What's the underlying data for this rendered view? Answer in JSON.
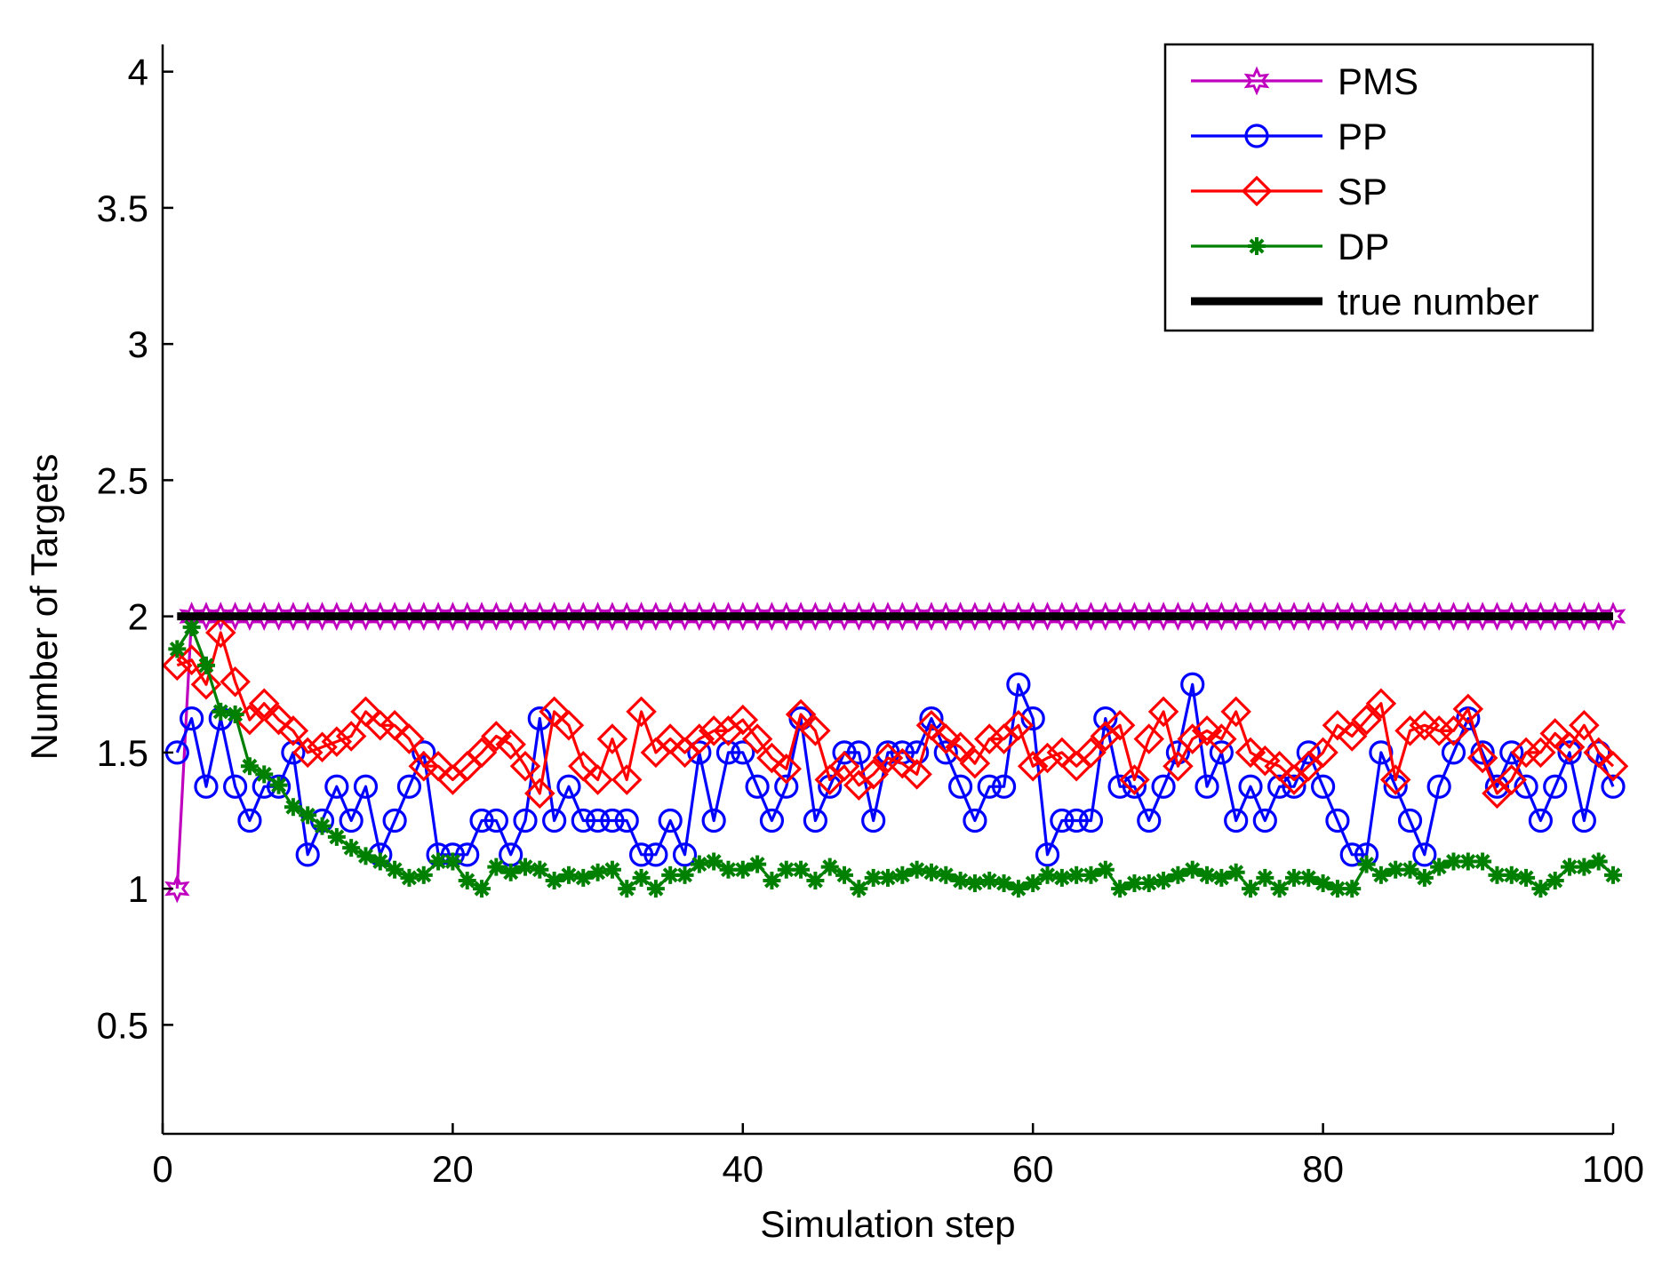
{
  "chart_data": {
    "type": "line",
    "title": "",
    "xlabel": "Simulation step",
    "ylabel": "Number of Targets",
    "xlim": [
      0,
      100
    ],
    "ylim": [
      0.1,
      4.1
    ],
    "xticks": [
      0,
      20,
      40,
      60,
      80,
      100
    ],
    "yticks": [
      0.5,
      1,
      1.5,
      2,
      2.5,
      3,
      3.5,
      4
    ],
    "xtick_labels": [
      "0",
      "20",
      "40",
      "60",
      "80",
      "100"
    ],
    "ytick_labels": [
      "0.5",
      "1",
      "1.5",
      "2",
      "2.5",
      "3",
      "3.5",
      "4"
    ],
    "grid": false,
    "legend_position": "top-right",
    "series": [
      {
        "name": "PMS",
        "color": "#bf00bf",
        "marker": "hexagram",
        "values": [
          1,
          2,
          2,
          2,
          2,
          2,
          2,
          2,
          2,
          2,
          2,
          2,
          2,
          2,
          2,
          2,
          2,
          2,
          2,
          2,
          2,
          2,
          2,
          2,
          2,
          2,
          2,
          2,
          2,
          2,
          2,
          2,
          2,
          2,
          2,
          2,
          2,
          2,
          2,
          2,
          2,
          2,
          2,
          2,
          2,
          2,
          2,
          2,
          2,
          2,
          2,
          2,
          2,
          2,
          2,
          2,
          2,
          2,
          2,
          2,
          2,
          2,
          2,
          2,
          2,
          2,
          2,
          2,
          2,
          2,
          2,
          2,
          2,
          2,
          2,
          2,
          2,
          2,
          2,
          2,
          2,
          2,
          2,
          2,
          2,
          2,
          2,
          2,
          2,
          2,
          2,
          2,
          2,
          2,
          2,
          2,
          2,
          2,
          2,
          2
        ]
      },
      {
        "name": "PP",
        "color": "#0000ff",
        "marker": "circle",
        "values": [
          1.5,
          1.625,
          1.375,
          1.625,
          1.375,
          1.25,
          1.375,
          1.375,
          1.5,
          1.125,
          1.25,
          1.375,
          1.25,
          1.375,
          1.125,
          1.25,
          1.375,
          1.5,
          1.125,
          1.125,
          1.125,
          1.25,
          1.25,
          1.125,
          1.25,
          1.625,
          1.25,
          1.375,
          1.25,
          1.25,
          1.25,
          1.25,
          1.125,
          1.125,
          1.25,
          1.125,
          1.5,
          1.25,
          1.5,
          1.5,
          1.375,
          1.25,
          1.375,
          1.625,
          1.25,
          1.375,
          1.5,
          1.5,
          1.25,
          1.5,
          1.5,
          1.5,
          1.625,
          1.5,
          1.375,
          1.25,
          1.375,
          1.375,
          1.75,
          1.625,
          1.125,
          1.25,
          1.25,
          1.25,
          1.625,
          1.375,
          1.375,
          1.25,
          1.375,
          1.5,
          1.75,
          1.375,
          1.5,
          1.25,
          1.375,
          1.25,
          1.375,
          1.375,
          1.5,
          1.375,
          1.25,
          1.125,
          1.125,
          1.5,
          1.375,
          1.25,
          1.125,
          1.375,
          1.5,
          1.625,
          1.5,
          1.375,
          1.5,
          1.375,
          1.25,
          1.375,
          1.5,
          1.25,
          1.5,
          1.375
        ]
      },
      {
        "name": "SP",
        "color": "#ff0000",
        "marker": "diamond",
        "values": [
          1.82,
          1.84,
          1.75,
          1.94,
          1.76,
          1.62,
          1.68,
          1.62,
          1.58,
          1.5,
          1.52,
          1.54,
          1.56,
          1.65,
          1.6,
          1.6,
          1.55,
          1.45,
          1.45,
          1.4,
          1.45,
          1.5,
          1.56,
          1.53,
          1.45,
          1.35,
          1.65,
          1.6,
          1.45,
          1.4,
          1.55,
          1.4,
          1.65,
          1.5,
          1.55,
          1.5,
          1.55,
          1.58,
          1.58,
          1.62,
          1.55,
          1.48,
          1.44,
          1.64,
          1.58,
          1.4,
          1.45,
          1.38,
          1.42,
          1.48,
          1.46,
          1.42,
          1.6,
          1.55,
          1.52,
          1.46,
          1.55,
          1.55,
          1.6,
          1.45,
          1.48,
          1.5,
          1.45,
          1.5,
          1.56,
          1.6,
          1.4,
          1.55,
          1.65,
          1.45,
          1.55,
          1.58,
          1.55,
          1.65,
          1.5,
          1.47,
          1.45,
          1.4,
          1.45,
          1.5,
          1.6,
          1.56,
          1.62,
          1.68,
          1.4,
          1.58,
          1.6,
          1.58,
          1.58,
          1.66,
          1.48,
          1.35,
          1.4,
          1.5,
          1.5,
          1.57,
          1.52,
          1.6,
          1.5,
          1.45
        ]
      },
      {
        "name": "DP",
        "color": "#008000",
        "marker": "asterisk",
        "values": [
          1.88,
          1.96,
          1.82,
          1.65,
          1.64,
          1.45,
          1.42,
          1.38,
          1.3,
          1.27,
          1.23,
          1.19,
          1.15,
          1.12,
          1.1,
          1.07,
          1.04,
          1.05,
          1.1,
          1.1,
          1.03,
          1.0,
          1.08,
          1.06,
          1.08,
          1.07,
          1.03,
          1.05,
          1.04,
          1.06,
          1.07,
          1.0,
          1.04,
          1.0,
          1.05,
          1.05,
          1.09,
          1.1,
          1.07,
          1.07,
          1.09,
          1.03,
          1.07,
          1.07,
          1.03,
          1.08,
          1.05,
          1.0,
          1.04,
          1.04,
          1.05,
          1.07,
          1.06,
          1.05,
          1.03,
          1.02,
          1.03,
          1.02,
          1.0,
          1.02,
          1.05,
          1.04,
          1.05,
          1.05,
          1.07,
          1.0,
          1.02,
          1.02,
          1.03,
          1.05,
          1.07,
          1.05,
          1.04,
          1.06,
          1.0,
          1.04,
          1.0,
          1.04,
          1.04,
          1.02,
          1.0,
          1.0,
          1.09,
          1.05,
          1.07,
          1.07,
          1.04,
          1.08,
          1.1,
          1.1,
          1.1,
          1.05,
          1.05,
          1.04,
          1.0,
          1.03,
          1.08,
          1.08,
          1.1,
          1.05
        ]
      },
      {
        "name": "true number",
        "color": "#000000",
        "marker": "none",
        "values": [
          2,
          2,
          2,
          2,
          2,
          2,
          2,
          2,
          2,
          2,
          2,
          2,
          2,
          2,
          2,
          2,
          2,
          2,
          2,
          2,
          2,
          2,
          2,
          2,
          2,
          2,
          2,
          2,
          2,
          2,
          2,
          2,
          2,
          2,
          2,
          2,
          2,
          2,
          2,
          2,
          2,
          2,
          2,
          2,
          2,
          2,
          2,
          2,
          2,
          2,
          2,
          2,
          2,
          2,
          2,
          2,
          2,
          2,
          2,
          2,
          2,
          2,
          2,
          2,
          2,
          2,
          2,
          2,
          2,
          2,
          2,
          2,
          2,
          2,
          2,
          2,
          2,
          2,
          2,
          2,
          2,
          2,
          2,
          2,
          2,
          2,
          2,
          2,
          2,
          2,
          2,
          2,
          2,
          2,
          2,
          2,
          2,
          2,
          2,
          2
        ]
      }
    ]
  }
}
